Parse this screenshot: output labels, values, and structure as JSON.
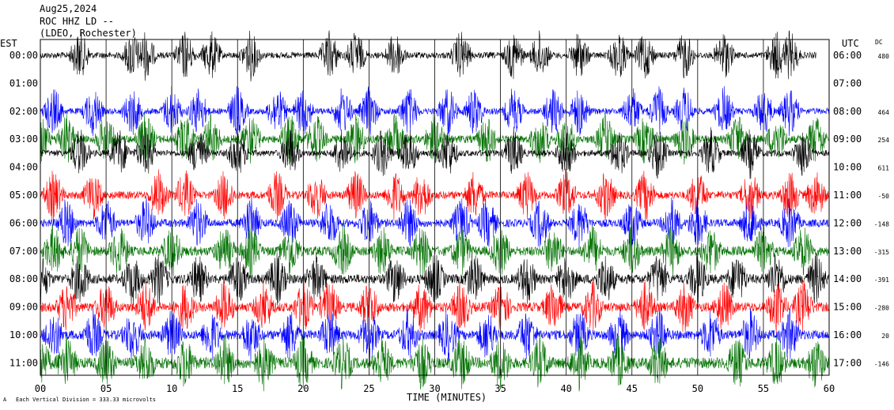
{
  "chart_data": {
    "type": "line",
    "header": {
      "date": "Aug25,2024",
      "station": "ROC HHZ LD --",
      "network": "(LDEO, Rochester)"
    },
    "left_axis_title": "EST",
    "right_axis_title": "UTC",
    "dc_title": "DC",
    "xlabel": "TIME (MINUTES)",
    "x_ticks": [
      "00",
      "05",
      "10",
      "15",
      "20",
      "25",
      "30",
      "35",
      "40",
      "45",
      "50",
      "55",
      "60"
    ],
    "xlim": [
      0,
      60
    ],
    "footnote": "Each Vertical Division = 333.33 microvolts",
    "series_colors": [
      "#000000",
      "#0000ff",
      "#007000",
      "#ff0000"
    ],
    "rows": [
      {
        "est": "00:00",
        "utc": "06:00",
        "dc": "480",
        "color": "#000000"
      },
      {
        "est": "01:00",
        "utc": "07:00",
        "dc": "",
        "color": "#000000"
      },
      {
        "est": "02:00",
        "utc": "08:00",
        "dc": "464",
        "color": "#0000ff"
      },
      {
        "est": "03:00",
        "utc": "09:00",
        "dc": "254",
        "color": "#007000"
      },
      {
        "est": "04:00",
        "utc": "10:00",
        "dc": "611",
        "color": "#000000"
      },
      {
        "est": "05:00",
        "utc": "11:00",
        "dc": "-50",
        "color": "#ff0000"
      },
      {
        "est": "06:00",
        "utc": "12:00",
        "dc": "-148",
        "color": "#0000ff"
      },
      {
        "est": "07:00",
        "utc": "13:00",
        "dc": "-315",
        "color": "#007000"
      },
      {
        "est": "08:00",
        "utc": "14:00",
        "dc": "-391",
        "color": "#000000"
      },
      {
        "est": "09:00",
        "utc": "15:00",
        "dc": "-280",
        "color": "#ff0000"
      },
      {
        "est": "10:00",
        "utc": "16:00",
        "dc": "20",
        "color": "#0000ff"
      },
      {
        "est": "11:00",
        "utc": "17:00",
        "dc": "-146",
        "color": "#007000"
      }
    ],
    "traces": [
      {
        "hour": 0,
        "color": "#000000",
        "amplitude": 4,
        "end_minute": 59,
        "bursts": [
          3,
          7,
          8,
          11,
          13,
          16,
          22,
          24,
          27,
          32,
          36,
          38,
          41,
          44,
          46,
          49,
          52,
          56,
          57
        ]
      },
      {
        "hour": 2,
        "color": "#0000ff",
        "amplitude": 4,
        "end_minute": 60,
        "bursts": [
          1,
          4,
          7,
          10,
          12,
          15,
          18,
          20,
          23,
          25,
          28,
          31,
          33,
          36,
          39,
          41,
          45,
          47,
          49,
          52,
          55,
          57
        ]
      },
      {
        "hour": 3,
        "color": "#007000",
        "amplitude": 5,
        "end_minute": 60,
        "bursts": [
          0,
          2,
          5,
          8,
          11,
          13,
          16,
          19,
          21,
          24,
          27,
          30,
          34,
          38,
          40,
          43,
          46,
          49,
          53,
          56,
          59
        ]
      },
      {
        "hour": 3.5,
        "color": "#000000",
        "amplitude": 4,
        "end_minute": 60,
        "bursts": [
          3,
          6,
          8,
          12,
          15,
          19,
          23,
          26,
          28,
          31,
          36,
          40,
          44,
          47,
          51,
          54,
          58
        ]
      },
      {
        "hour": 5,
        "color": "#ff0000",
        "amplitude": 5,
        "end_minute": 60,
        "bursts": [
          1,
          4,
          9,
          11,
          14,
          18,
          21,
          24,
          27,
          29,
          33,
          37,
          40,
          43,
          46,
          50,
          54,
          57,
          59
        ]
      },
      {
        "hour": 6,
        "color": "#0000ff",
        "amplitude": 5,
        "end_minute": 60,
        "bursts": [
          2,
          5,
          8,
          12,
          16,
          19,
          22,
          25,
          28,
          32,
          34,
          38,
          41,
          45,
          48,
          50,
          54,
          57
        ]
      },
      {
        "hour": 7,
        "color": "#007000",
        "amplitude": 6,
        "end_minute": 60,
        "bursts": [
          1,
          3,
          6,
          10,
          14,
          16,
          19,
          23,
          26,
          29,
          32,
          35,
          39,
          42,
          45,
          48,
          51,
          55,
          58
        ]
      },
      {
        "hour": 8,
        "color": "#000000",
        "amplitude": 6,
        "end_minute": 60,
        "bursts": [
          0,
          3,
          7,
          9,
          12,
          15,
          18,
          21,
          27,
          30,
          33,
          37,
          40,
          43,
          47,
          50,
          53,
          56,
          59
        ]
      },
      {
        "hour": 9,
        "color": "#ff0000",
        "amplitude": 6,
        "end_minute": 60,
        "bursts": [
          2,
          5,
          8,
          11,
          14,
          17,
          20,
          22,
          25,
          29,
          32,
          35,
          39,
          42,
          46,
          49,
          52,
          56,
          58
        ]
      },
      {
        "hour": 10,
        "color": "#0000ff",
        "amplitude": 6,
        "end_minute": 60,
        "bursts": [
          1,
          4,
          7,
          10,
          13,
          16,
          19,
          22,
          25,
          28,
          31,
          34,
          37,
          41,
          44,
          47,
          51,
          54,
          57
        ]
      },
      {
        "hour": 11,
        "color": "#007000",
        "amplitude": 7,
        "end_minute": 60,
        "bursts": [
          0,
          2,
          5,
          8,
          11,
          14,
          17,
          20,
          23,
          26,
          29,
          32,
          35,
          38,
          41,
          44,
          47,
          53,
          56,
          59
        ]
      }
    ],
    "grid": true
  }
}
